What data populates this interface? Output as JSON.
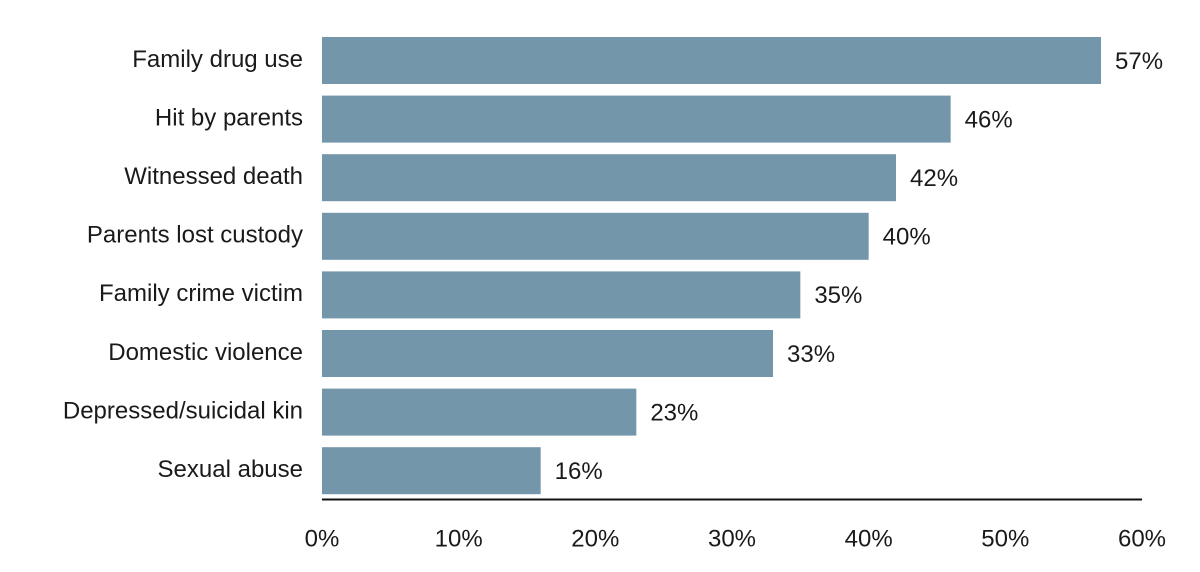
{
  "chart_data": {
    "type": "barh",
    "categories": [
      "Family drug use",
      "Hit by parents",
      "Witnessed death",
      "Parents lost custody",
      "Family crime victim",
      "Domestic violence",
      "Depressed/suicidal kin",
      "Sexual abuse"
    ],
    "values": [
      57,
      46,
      42,
      40,
      35,
      33,
      23,
      16
    ],
    "value_labels": [
      "57%",
      "46%",
      "42%",
      "40%",
      "35%",
      "33%",
      "23%",
      "16%"
    ],
    "color": "#7396aa",
    "xlim": [
      0,
      60
    ],
    "xticks": [
      {
        "value": 0,
        "label": "0%"
      },
      {
        "value": 10,
        "label": "10%"
      },
      {
        "value": 20,
        "label": "20%"
      },
      {
        "value": 30,
        "label": "30%"
      },
      {
        "value": 40,
        "label": "40%"
      },
      {
        "value": 50,
        "label": "50%"
      },
      {
        "value": 60,
        "label": "60%"
      }
    ],
    "grid": false
  }
}
